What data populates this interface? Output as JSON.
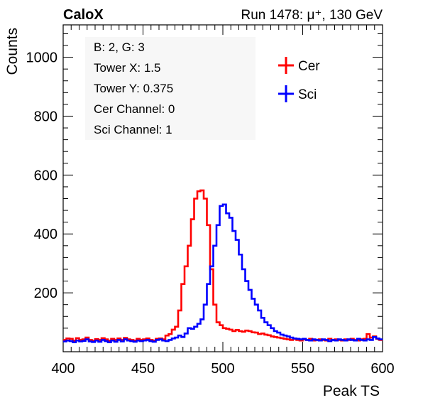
{
  "header": {
    "left_label": "CaloX",
    "right_label": "Run 1478:   μ⁺, 130 GeV"
  },
  "info_box": {
    "lines": [
      "B: 2, G: 3",
      "Tower X: 1.5",
      "Tower Y: 0.375",
      "Cer Channel: 0",
      "Sci Channel: 1"
    ]
  },
  "colors": {
    "cer": "#ff0000",
    "sci": "#0000ff",
    "axis": "#000000"
  },
  "chart_data": {
    "type": "line",
    "xlabel": "Peak TS",
    "ylabel": "Counts",
    "xlim": [
      400,
      600
    ],
    "ylim": [
      0,
      1110
    ],
    "x_ticks": [
      400,
      450,
      500,
      550,
      600
    ],
    "y_ticks": [
      200,
      400,
      600,
      800,
      1000
    ],
    "grid": false,
    "legend_position": "top-right",
    "series": [
      {
        "name": "Cer",
        "color": "#ff0000",
        "bins": [
          [
            400,
            40
          ],
          [
            402,
            45
          ],
          [
            404,
            44
          ],
          [
            406,
            38
          ],
          [
            408,
            46
          ],
          [
            410,
            40
          ],
          [
            412,
            42
          ],
          [
            414,
            48
          ],
          [
            416,
            40
          ],
          [
            418,
            38
          ],
          [
            420,
            43
          ],
          [
            422,
            40
          ],
          [
            424,
            46
          ],
          [
            426,
            42
          ],
          [
            428,
            38
          ],
          [
            430,
            44
          ],
          [
            432,
            40
          ],
          [
            434,
            45
          ],
          [
            436,
            40
          ],
          [
            438,
            47
          ],
          [
            440,
            42
          ],
          [
            442,
            40
          ],
          [
            444,
            38
          ],
          [
            446,
            44
          ],
          [
            448,
            40
          ],
          [
            450,
            42
          ],
          [
            452,
            45
          ],
          [
            454,
            40
          ],
          [
            456,
            38
          ],
          [
            458,
            44
          ],
          [
            460,
            45
          ],
          [
            462,
            42
          ],
          [
            464,
            55
          ],
          [
            466,
            60
          ],
          [
            468,
            75
          ],
          [
            470,
            85
          ],
          [
            472,
            140
          ],
          [
            474,
            230
          ],
          [
            476,
            290
          ],
          [
            478,
            360
          ],
          [
            480,
            450
          ],
          [
            482,
            520
          ],
          [
            484,
            545
          ],
          [
            486,
            548
          ],
          [
            488,
            520
          ],
          [
            490,
            430
          ],
          [
            492,
            280
          ],
          [
            494,
            160
          ],
          [
            496,
            100
          ],
          [
            498,
            90
          ],
          [
            500,
            80
          ],
          [
            502,
            78
          ],
          [
            504,
            75
          ],
          [
            506,
            70
          ],
          [
            508,
            74
          ],
          [
            510,
            70
          ],
          [
            512,
            68
          ],
          [
            514,
            72
          ],
          [
            516,
            70
          ],
          [
            518,
            66
          ],
          [
            520,
            65
          ],
          [
            522,
            60
          ],
          [
            524,
            62
          ],
          [
            526,
            58
          ],
          [
            528,
            56
          ],
          [
            530,
            52
          ],
          [
            532,
            50
          ],
          [
            534,
            48
          ],
          [
            536,
            46
          ],
          [
            538,
            44
          ],
          [
            540,
            42
          ],
          [
            542,
            40
          ],
          [
            544,
            44
          ],
          [
            546,
            40
          ],
          [
            548,
            38
          ],
          [
            550,
            42
          ],
          [
            552,
            40
          ],
          [
            554,
            44
          ],
          [
            556,
            38
          ],
          [
            558,
            40
          ],
          [
            560,
            42
          ],
          [
            562,
            40
          ],
          [
            564,
            38
          ],
          [
            566,
            44
          ],
          [
            568,
            40
          ],
          [
            570,
            42
          ],
          [
            572,
            40
          ],
          [
            574,
            38
          ],
          [
            576,
            42
          ],
          [
            578,
            40
          ],
          [
            580,
            44
          ],
          [
            582,
            40
          ],
          [
            584,
            38
          ],
          [
            586,
            42
          ],
          [
            588,
            44
          ],
          [
            590,
            60
          ],
          [
            592,
            48
          ],
          [
            594,
            52
          ],
          [
            596,
            44
          ],
          [
            598,
            40
          ]
        ]
      },
      {
        "name": "Sci",
        "color": "#0000ff",
        "bins": [
          [
            400,
            35
          ],
          [
            402,
            38
          ],
          [
            404,
            36
          ],
          [
            406,
            32
          ],
          [
            408,
            38
          ],
          [
            410,
            35
          ],
          [
            412,
            37
          ],
          [
            414,
            42
          ],
          [
            416,
            35
          ],
          [
            418,
            33
          ],
          [
            420,
            38
          ],
          [
            422,
            34
          ],
          [
            424,
            40
          ],
          [
            426,
            36
          ],
          [
            428,
            32
          ],
          [
            430,
            38
          ],
          [
            432,
            34
          ],
          [
            434,
            40
          ],
          [
            436,
            35
          ],
          [
            438,
            42
          ],
          [
            440,
            38
          ],
          [
            442,
            36
          ],
          [
            444,
            34
          ],
          [
            446,
            38
          ],
          [
            448,
            36
          ],
          [
            450,
            38
          ],
          [
            452,
            40
          ],
          [
            454,
            36
          ],
          [
            456,
            34
          ],
          [
            458,
            40
          ],
          [
            460,
            42
          ],
          [
            462,
            38
          ],
          [
            464,
            36
          ],
          [
            466,
            40
          ],
          [
            468,
            45
          ],
          [
            470,
            48
          ],
          [
            472,
            55
          ],
          [
            474,
            50
          ],
          [
            476,
            62
          ],
          [
            478,
            80
          ],
          [
            480,
            78
          ],
          [
            482,
            85
          ],
          [
            484,
            95
          ],
          [
            486,
            110
          ],
          [
            488,
            160
          ],
          [
            490,
            230
          ],
          [
            492,
            290
          ],
          [
            494,
            360
          ],
          [
            496,
            430
          ],
          [
            498,
            495
          ],
          [
            500,
            500
          ],
          [
            502,
            470
          ],
          [
            504,
            455
          ],
          [
            506,
            410
          ],
          [
            508,
            380
          ],
          [
            510,
            330
          ],
          [
            512,
            280
          ],
          [
            514,
            240
          ],
          [
            516,
            210
          ],
          [
            518,
            180
          ],
          [
            520,
            160
          ],
          [
            522,
            140
          ],
          [
            524,
            115
          ],
          [
            526,
            100
          ],
          [
            528,
            90
          ],
          [
            530,
            80
          ],
          [
            532,
            70
          ],
          [
            534,
            65
          ],
          [
            536,
            58
          ],
          [
            538,
            55
          ],
          [
            540,
            52
          ],
          [
            542,
            48
          ],
          [
            544,
            45
          ],
          [
            546,
            44
          ],
          [
            548,
            42
          ],
          [
            550,
            44
          ],
          [
            552,
            40
          ],
          [
            554,
            38
          ],
          [
            556,
            42
          ],
          [
            558,
            40
          ],
          [
            560,
            38
          ],
          [
            562,
            42
          ],
          [
            564,
            40
          ],
          [
            566,
            36
          ],
          [
            568,
            40
          ],
          [
            570,
            38
          ],
          [
            572,
            42
          ],
          [
            574,
            40
          ],
          [
            576,
            38
          ],
          [
            578,
            42
          ],
          [
            580,
            40
          ],
          [
            582,
            38
          ],
          [
            584,
            44
          ],
          [
            586,
            40
          ],
          [
            588,
            38
          ],
          [
            590,
            42
          ],
          [
            592,
            40
          ],
          [
            594,
            50
          ],
          [
            596,
            45
          ],
          [
            598,
            42
          ]
        ]
      }
    ]
  }
}
